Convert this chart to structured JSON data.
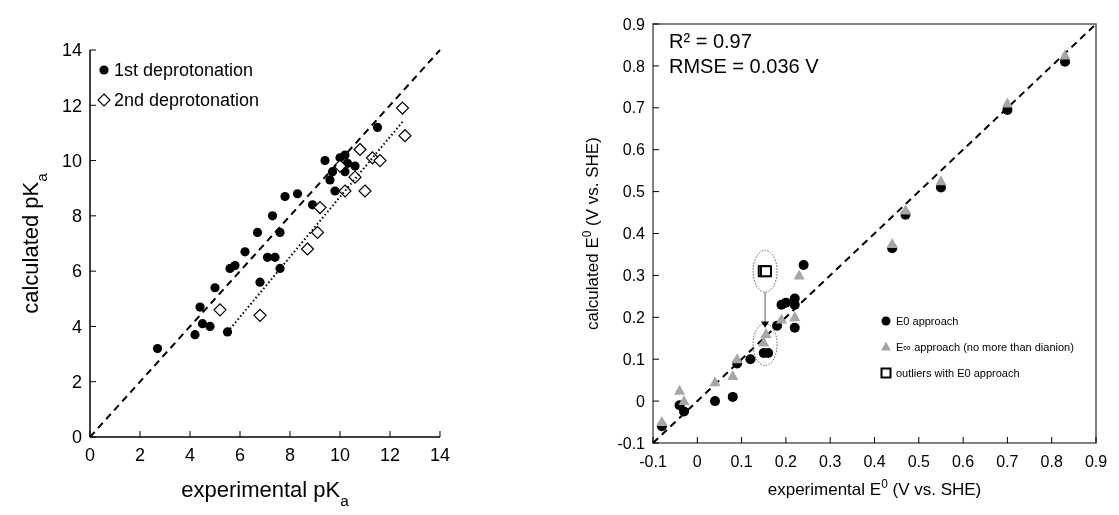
{
  "chart_data": [
    {
      "type": "scatter",
      "xlabel": "experimental pK$_{a}$",
      "ylabel": "calculated pK$_{a}$",
      "xlim": [
        0,
        14
      ],
      "ylim": [
        0,
        14
      ],
      "xticks": [
        0,
        2,
        4,
        6,
        8,
        10,
        12,
        14
      ],
      "yticks": [
        0,
        2,
        4,
        6,
        8,
        10,
        12,
        14
      ],
      "grid": false,
      "legend": "top left",
      "series": [
        {
          "name": "1st deprotonation",
          "color": "#000000",
          "marker": "circle",
          "x": [
            2.7,
            4.2,
            4.4,
            4.5,
            4.8,
            5.0,
            5.5,
            5.6,
            5.8,
            6.2,
            6.7,
            6.8,
            7.1,
            7.3,
            7.4,
            7.6,
            7.6,
            7.8,
            8.3,
            8.9,
            9.4,
            9.6,
            9.7,
            9.8,
            10.0,
            10.2,
            10.2,
            10.3,
            10.6,
            11.5
          ],
          "values": [
            3.2,
            3.7,
            4.7,
            4.1,
            4.0,
            5.4,
            3.8,
            6.1,
            6.2,
            6.7,
            7.4,
            5.6,
            6.5,
            8.0,
            6.5,
            7.4,
            6.1,
            8.7,
            8.8,
            8.4,
            10.0,
            9.3,
            9.6,
            8.9,
            10.1,
            10.2,
            9.6,
            9.9,
            9.8,
            11.2
          ]
        },
        {
          "name": "2nd deprotonation",
          "color": "#000000",
          "marker": "diamond",
          "x": [
            5.2,
            6.8,
            8.7,
            9.1,
            9.2,
            10.0,
            10.2,
            10.6,
            10.8,
            11.0,
            11.3,
            11.6,
            12.5,
            12.6
          ],
          "values": [
            4.6,
            4.4,
            6.8,
            7.4,
            8.3,
            9.8,
            8.9,
            9.4,
            10.4,
            8.9,
            10.1,
            10.0,
            11.9,
            10.9
          ]
        },
        {
          "type": "line",
          "color": "#000000",
          "line_style": "dashed",
          "marker": "none",
          "x": [
            0,
            14
          ],
          "values": [
            0,
            14
          ]
        },
        {
          "type": "line",
          "color": "#000000",
          "line_style": "dotted",
          "marker": "none",
          "x": [
            5.5,
            12.5
          ],
          "values": [
            3.8,
            11.4
          ]
        }
      ]
    },
    {
      "type": "scatter",
      "xlabel": "experimental E$^{0}$ (V vs. SHE)",
      "ylabel": "calculated E$^{0}$ (V vs. SHE)",
      "xlim": [
        -0.1,
        0.9
      ],
      "ylim": [
        -0.1,
        0.9
      ],
      "xticks": [
        -0.1,
        0,
        0.1,
        0.2,
        0.3,
        0.4,
        0.5,
        0.6,
        0.7,
        0.8,
        0.9
      ],
      "yticks": [
        -0.1,
        0,
        0.1,
        0.2,
        0.3,
        0.4,
        0.5,
        0.6,
        0.7,
        0.8,
        0.9
      ],
      "grid": false,
      "legend": "bottom right",
      "annotations": [
        "R² = 0.97",
        "RMSE = 0.036 V"
      ],
      "series": [
        {
          "type": "line",
          "color": "#000000",
          "line_style": "dashed",
          "marker": "none",
          "x": [
            -0.1,
            0.9
          ],
          "values": [
            -0.1,
            0.9
          ]
        },
        {
          "name": "E0 approach",
          "color": "#000000",
          "marker": "circle",
          "x": [
            -0.08,
            -0.04,
            -0.03,
            0.04,
            0.08,
            0.09,
            0.12,
            0.15,
            0.16,
            0.18,
            0.19,
            0.2,
            0.22,
            0.22,
            0.22,
            0.24,
            0.44,
            0.47,
            0.55,
            0.7,
            0.83
          ],
          "values": [
            -0.06,
            -0.01,
            -0.025,
            0.0,
            0.01,
            0.09,
            0.1,
            0.115,
            0.115,
            0.18,
            0.23,
            0.235,
            0.175,
            0.23,
            0.245,
            0.325,
            0.365,
            0.445,
            0.51,
            0.695,
            0.81
          ]
        },
        {
          "name": "E∞ approach (no more than dianion)",
          "color": "#a6a6a6",
          "marker": "triangle",
          "x": [
            -0.08,
            -0.04,
            -0.03,
            0.04,
            0.08,
            0.09,
            0.15,
            0.155,
            0.19,
            0.22,
            0.23,
            0.44,
            0.47,
            0.55,
            0.7,
            0.83
          ],
          "values": [
            -0.05,
            0.025,
            0.0,
            0.045,
            0.06,
            0.1,
            0.14,
            0.16,
            0.195,
            0.2,
            0.3,
            0.375,
            0.455,
            0.525,
            0.71,
            0.825
          ]
        },
        {
          "name": "outliers with E0 approach",
          "color": "#000000",
          "marker": "square",
          "x": [
            0.15,
            0.155
          ],
          "values": [
            0.31,
            0.31
          ]
        }
      ]
    }
  ]
}
